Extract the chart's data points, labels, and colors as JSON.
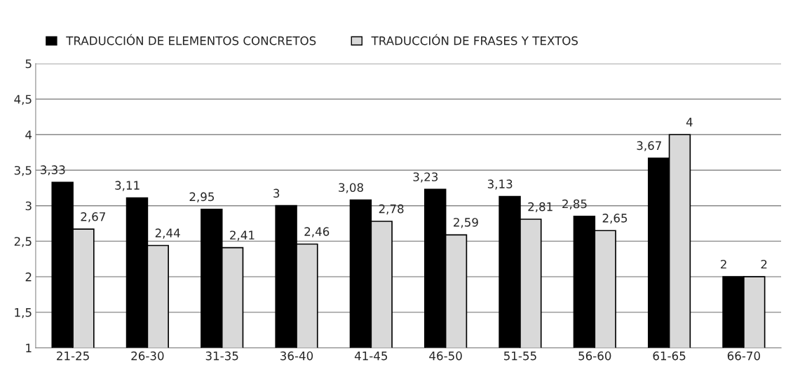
{
  "chart_data": {
    "type": "bar",
    "categories": [
      "21-25",
      "26-30",
      "31-35",
      "36-40",
      "41-45",
      "46-50",
      "51-55",
      "56-60",
      "61-65",
      "66-70"
    ],
    "series": [
      {
        "name": "TRADUCCIÓN DE ELEMENTOS CONCRETOS",
        "color": "#000000",
        "values": [
          3.33,
          3.11,
          2.95,
          3,
          3.08,
          3.23,
          3.13,
          2.85,
          3.67,
          2
        ],
        "value_labels": [
          "3,33",
          "3,11",
          "2,95",
          "3",
          "3,08",
          "3,23",
          "3,13",
          "2,85",
          "3,67",
          "2"
        ]
      },
      {
        "name": "TRADUCCIÓN DE FRASES Y TEXTOS",
        "color": "#d9d9d9",
        "values": [
          2.67,
          2.44,
          2.41,
          2.46,
          2.78,
          2.59,
          2.81,
          2.65,
          4,
          2
        ],
        "value_labels": [
          "2,67",
          "2,44",
          "2,41",
          "2,46",
          "2,78",
          "2,59",
          "2,81",
          "2,65",
          "4",
          "2"
        ]
      }
    ],
    "ylim": [
      1,
      5
    ],
    "yticks": [
      1,
      {
        "value": 1.5,
        "label": "1,5"
      },
      2,
      {
        "value": 2.5,
        "label": "2,5"
      },
      3,
      {
        "value": 3.5,
        "label": "3,5"
      },
      4,
      {
        "value": 4.5,
        "label": "4,5"
      },
      5
    ],
    "grid": "y",
    "legend": "top"
  }
}
